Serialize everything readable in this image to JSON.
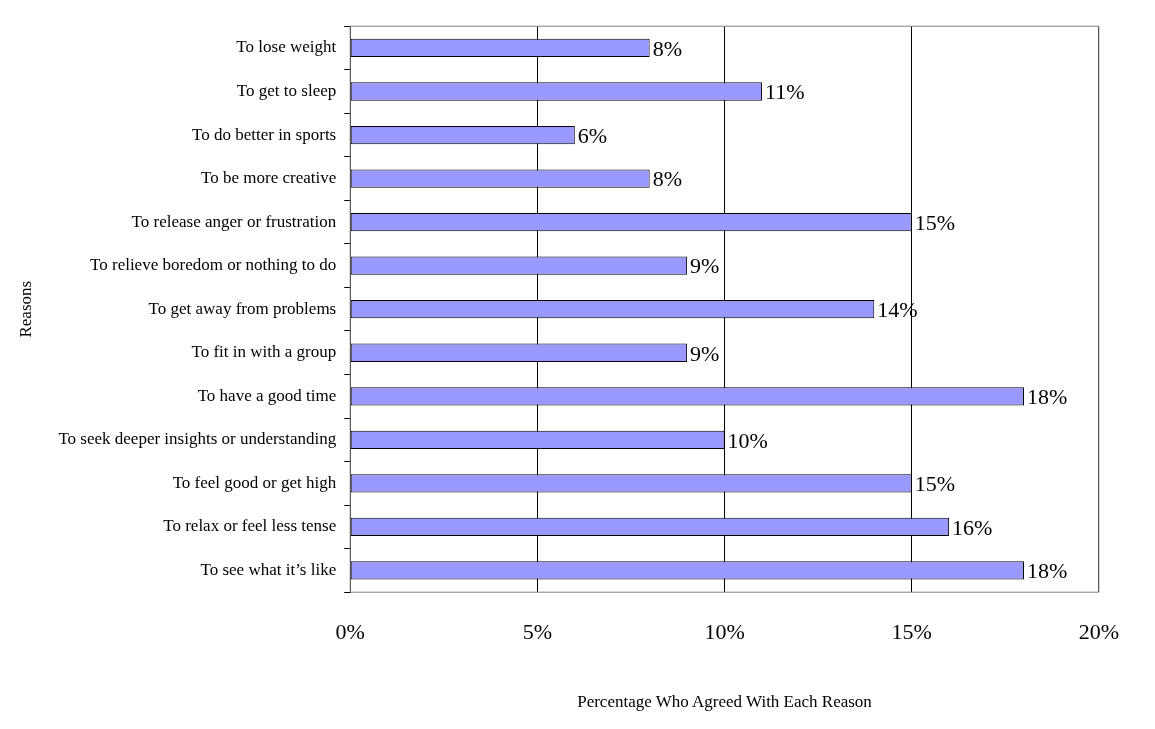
{
  "chart_data": {
    "type": "bar",
    "orientation": "horizontal",
    "xlabel": "Percentage Who Agreed With Each Reason",
    "ylabel": "Reasons",
    "categories": [
      "To lose weight",
      "To get to sleep",
      "To do better in sports",
      "To be more creative",
      "To release anger or frustration",
      "To relieve boredom or nothing to do",
      "To get away from problems",
      "To fit in with a group",
      "To have a good time",
      "To seek deeper insights or understanding",
      "To feel good or get high",
      "To relax or feel less tense",
      "To see what it’s like"
    ],
    "values": [
      8,
      11,
      6,
      8,
      15,
      9,
      14,
      9,
      18,
      10,
      15,
      16,
      18
    ],
    "value_labels": [
      "8%",
      "11%",
      "6%",
      "8%",
      "15%",
      "9%",
      "14%",
      "9%",
      "18%",
      "10%",
      "15%",
      "16%",
      "18%"
    ],
    "color": "#9999ff",
    "xlim": [
      0,
      20
    ],
    "xticks": [
      {
        "value": 0,
        "label": "0%"
      },
      {
        "value": 5,
        "label": "5%"
      },
      {
        "value": 10,
        "label": "10%"
      },
      {
        "value": 15,
        "label": "15%"
      },
      {
        "value": 20,
        "label": "20%"
      }
    ],
    "grid": "x",
    "legend": false
  }
}
